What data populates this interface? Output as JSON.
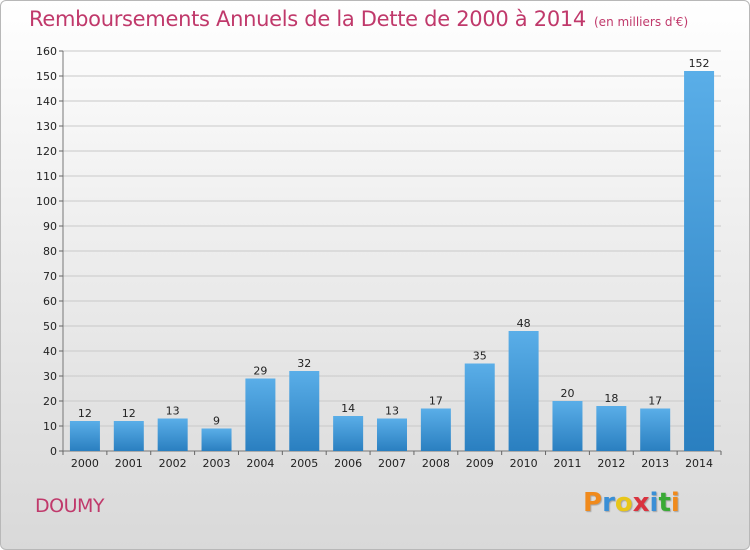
{
  "title": "Remboursements Annuels de la Dette de 2000 à 2014",
  "subtitle": "(en milliers d'€)",
  "commune": "DOUMY",
  "logo": {
    "text": "Proxiti",
    "letters": [
      {
        "ch": "P",
        "color": "#f08a1c"
      },
      {
        "ch": "r",
        "color": "#3a8fd6"
      },
      {
        "ch": "o",
        "color": "#e8c61a"
      },
      {
        "ch": "x",
        "color": "#d9333f"
      },
      {
        "ch": "i",
        "color": "#3a8fd6"
      },
      {
        "ch": "t",
        "color": "#3aaa35"
      },
      {
        "ch": "i",
        "color": "#f08a1c"
      }
    ]
  },
  "colors": {
    "accent": "#c0396b",
    "bar_top": "#5aaee8",
    "bar_bottom": "#2a7fc0"
  },
  "chart_data": {
    "type": "bar",
    "title": "Remboursements Annuels de la Dette de 2000 à 2014",
    "subtitle": "(en milliers d'€)",
    "categories": [
      "2000",
      "2001",
      "2002",
      "2003",
      "2004",
      "2005",
      "2006",
      "2007",
      "2008",
      "2009",
      "2010",
      "2011",
      "2012",
      "2013",
      "2014"
    ],
    "values": [
      12,
      12,
      13,
      9,
      29,
      32,
      14,
      13,
      17,
      35,
      48,
      20,
      18,
      17,
      152
    ],
    "ylim": [
      0,
      160
    ],
    "yticks": [
      0,
      10,
      20,
      30,
      40,
      50,
      60,
      70,
      80,
      90,
      100,
      110,
      120,
      130,
      140,
      150,
      160
    ],
    "grid": true,
    "legend": "none"
  }
}
